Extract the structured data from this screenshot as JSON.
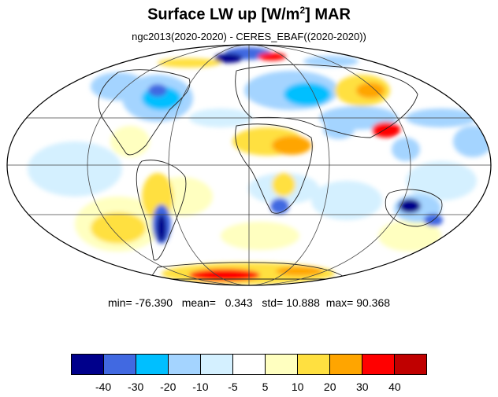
{
  "title": {
    "main": "Surface LW up [W/m",
    "sup": "2",
    "tail": "]  MAR"
  },
  "subtitle": "ngc2013(2020-2020) - CERES_EBAF((2020-2020))",
  "stats": {
    "min_label": "min=",
    "min": "-76.390",
    "mean_label": "mean=",
    "mean": "0.343",
    "std_label": "std=",
    "std": "10.888",
    "max_label": "max=",
    "max": "90.368"
  },
  "colorbar": {
    "colors": [
      "#00008b",
      "#4169e1",
      "#00bfff",
      "#a4d4ff",
      "#d4f0ff",
      "#ffffff",
      "#ffffc0",
      "#ffe040",
      "#ffa500",
      "#ff0000",
      "#c00000"
    ],
    "ticks": [
      "-40",
      "-30",
      "-20",
      "-10",
      "-5",
      "5",
      "10",
      "20",
      "30",
      "40"
    ]
  }
}
